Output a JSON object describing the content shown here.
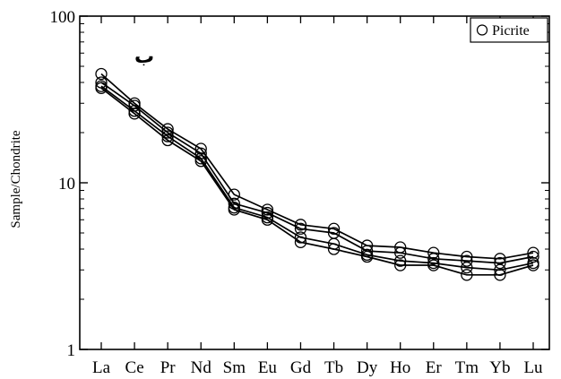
{
  "chart_data": {
    "type": "line",
    "y_scale": "log",
    "ylim": [
      1,
      100
    ],
    "ylabel": "Sample/Chondrite",
    "xlabel": "",
    "y_ticks": [
      "1",
      "10",
      "100"
    ],
    "categories": [
      "La",
      "Ce",
      "Pr",
      "Nd",
      "Sm",
      "Eu",
      "Gd",
      "Tb",
      "Dy",
      "Ho",
      "Er",
      "Tm",
      "Yb",
      "Lu"
    ],
    "legend": {
      "label": "Picrite",
      "position": "top-right",
      "marker": "open-circle"
    },
    "panel_label": "ب",
    "series": [
      {
        "values": [
          45,
          30,
          21,
          16,
          8.5,
          6.9,
          5.6,
          5.3,
          4.2,
          4.1,
          3.8,
          3.6,
          3.5,
          3.8
        ]
      },
      {
        "values": [
          40,
          29,
          20,
          15,
          7.5,
          6.6,
          5.3,
          5.0,
          3.9,
          3.8,
          3.5,
          3.4,
          3.3,
          3.6
        ]
      },
      {
        "values": [
          38,
          27,
          19,
          14,
          7.1,
          6.2,
          4.7,
          4.3,
          3.7,
          3.4,
          3.3,
          3.1,
          3.0,
          3.3
        ]
      },
      {
        "values": [
          37,
          26,
          18,
          13.5,
          6.9,
          6.0,
          4.4,
          4.0,
          3.6,
          3.2,
          3.2,
          2.8,
          2.8,
          3.2
        ]
      }
    ]
  }
}
